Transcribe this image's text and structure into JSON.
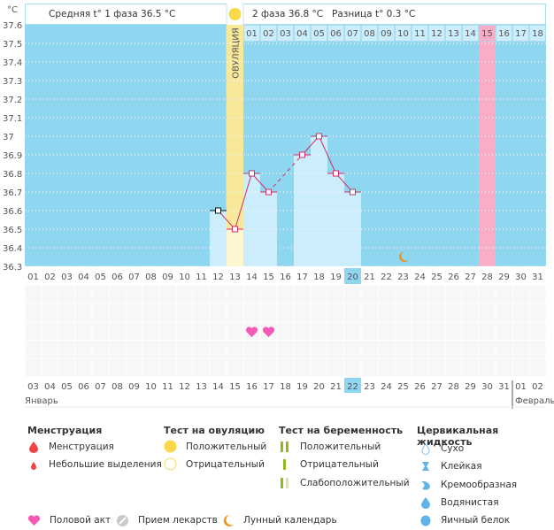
{
  "chart_data": {
    "type": "line",
    "unit_label": "°C",
    "ylim": [
      36.3,
      37.6
    ],
    "y_ticks": [
      "37.6",
      "37.5",
      "37.4",
      "37.3",
      "37.2",
      "37.1",
      "37",
      "36.9",
      "36.8",
      "36.7",
      "36.6",
      "36.5",
      "36.4",
      "36.3"
    ],
    "header": {
      "phase1": "Средняя t° 1 фаза 36.5 °C",
      "phase2": "2 фаза 36.8 °C",
      "diff": "Разница t° 0.3 °C"
    },
    "ovulation_label": "ОВУЛЯЦИЯ",
    "ovulation_day": 13,
    "cycle_days": [
      "01",
      "02",
      "03",
      "04",
      "05",
      "06",
      "07",
      "08",
      "09",
      "10",
      "11",
      "12",
      "13",
      "14",
      "15",
      "16",
      "17",
      "18",
      "19",
      "20",
      "21",
      "22",
      "23",
      "24",
      "25",
      "26",
      "27",
      "28",
      "29",
      "30",
      "31"
    ],
    "today_cycle_day": 20,
    "highlight_day_pink": 28,
    "luteal_day_labels": [
      "01",
      "02",
      "03",
      "04",
      "05",
      "06",
      "07",
      "08",
      "09",
      "10",
      "11",
      "12",
      "13",
      "14",
      "15",
      "16",
      "17",
      "18"
    ],
    "luteal_highlight_label": "15",
    "points": [
      {
        "day": 12,
        "temp": 36.6,
        "marker": "black"
      },
      {
        "day": 13,
        "temp": 36.5
      },
      {
        "day": 14,
        "temp": 36.8
      },
      {
        "day": 15,
        "temp": 36.7
      },
      {
        "day": 17,
        "temp": 36.9
      },
      {
        "day": 18,
        "temp": 37.0
      },
      {
        "day": 19,
        "temp": 36.8
      },
      {
        "day": 20,
        "temp": 36.7
      }
    ],
    "dashed_gap": [
      15,
      17
    ],
    "moon_day": 23,
    "intercourse_days": [
      14,
      15
    ],
    "calendar_dates": [
      "03",
      "04",
      "05",
      "06",
      "07",
      "08",
      "09",
      "10",
      "11",
      "12",
      "13",
      "14",
      "15",
      "16",
      "17",
      "18",
      "19",
      "20",
      "21",
      "22",
      "23",
      "24",
      "25",
      "26",
      "27",
      "28",
      "29",
      "30",
      "31",
      "01",
      "02"
    ],
    "weekend_dates": [
      "03",
      "04",
      "10",
      "11",
      "17",
      "18",
      "24",
      "25",
      "31",
      "01"
    ],
    "today_date": "22",
    "month_start": "Январь",
    "month_next": "Февраль",
    "colors": {
      "sky": "#8fd6f1",
      "bar": "#cceefc",
      "ovulation": "#f8e89a",
      "ovulation_bar": "#fdf6d0",
      "pink": "#f9aec6",
      "line": "#d0306a",
      "heart": "#f55bb5",
      "moon": "#f09418",
      "weekend": "#d02255",
      "today": "#8fd6f1"
    }
  },
  "legend": {
    "menstruation": {
      "title": "Менструация",
      "items": [
        "Менструация",
        "Небольшие выделения"
      ]
    },
    "ovulation_test": {
      "title": "Тест на овуляцию",
      "items": [
        "Положительный",
        "Отрицательный"
      ]
    },
    "pregnancy_test": {
      "title": "Тест на беременность",
      "items": [
        "Положительный",
        "Отрицательный",
        "Слабоположительный"
      ]
    },
    "cervical": {
      "title": "Цервикальная жидкость",
      "items": [
        "Сухо",
        "Клейкая",
        "Кремообразная",
        "Водянистая",
        "Яичный белок"
      ]
    },
    "other": [
      "Половой акт",
      "Прием лекарств",
      "Лунный календарь"
    ]
  }
}
